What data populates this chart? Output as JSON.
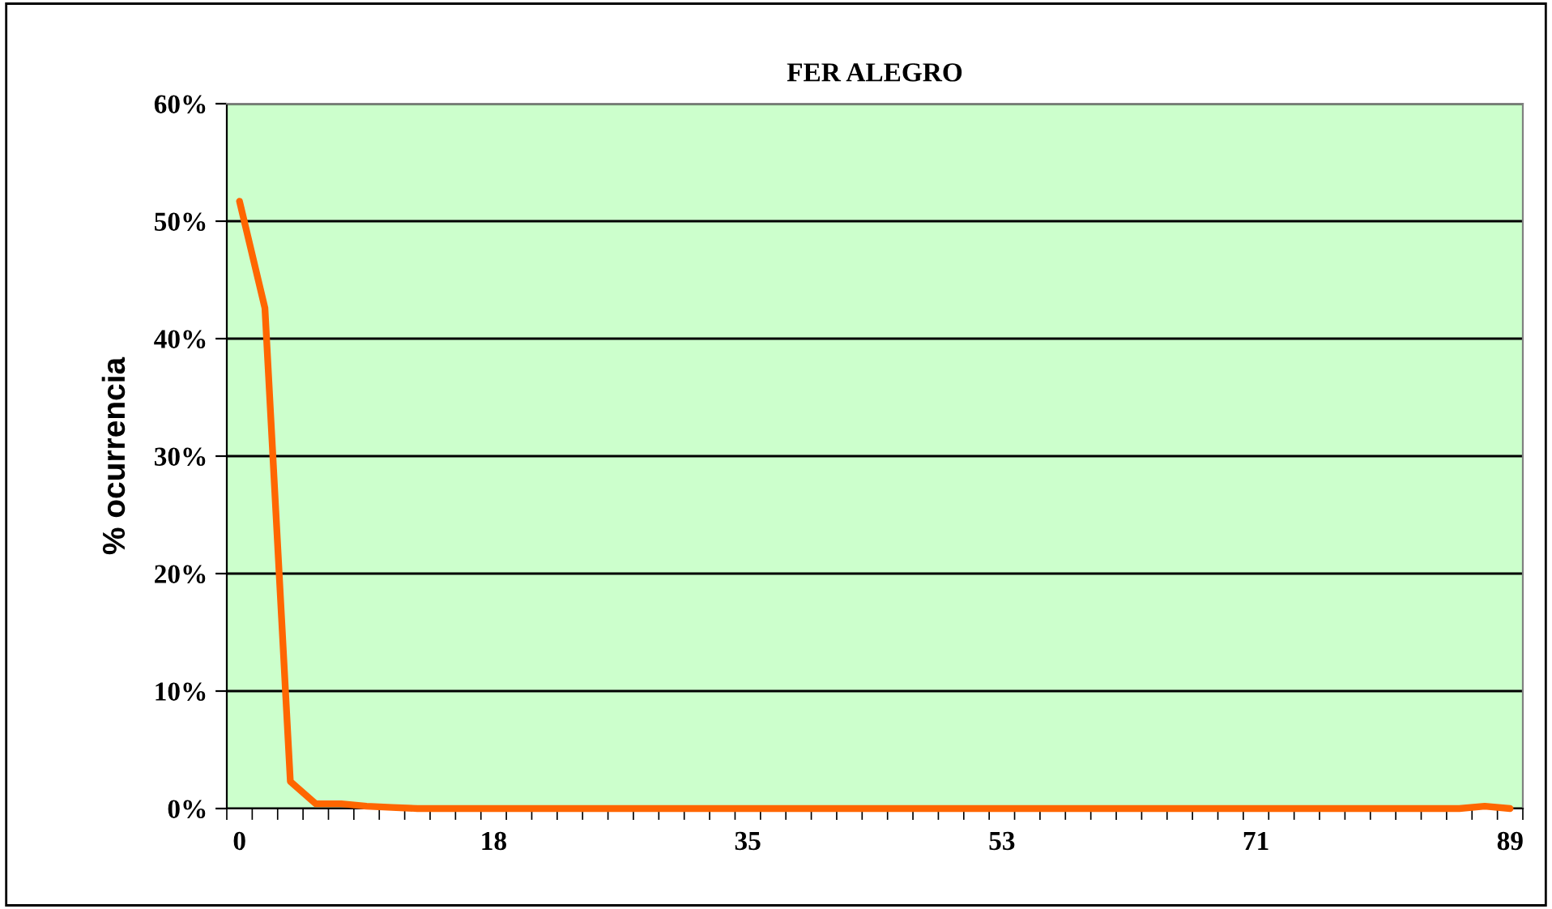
{
  "chart_data": {
    "type": "line",
    "title": "FER ALEGRO",
    "ylabel": "% ocurrencia",
    "categories": [
      "0",
      null,
      null,
      null,
      null,
      null,
      null,
      null,
      null,
      null,
      "18",
      null,
      null,
      null,
      null,
      null,
      null,
      null,
      null,
      null,
      "35",
      null,
      null,
      null,
      null,
      null,
      null,
      null,
      null,
      null,
      "53",
      null,
      null,
      null,
      null,
      null,
      null,
      null,
      null,
      null,
      "71",
      null,
      null,
      null,
      null,
      null,
      null,
      null,
      null,
      null,
      "89"
    ],
    "series": [
      {
        "color": "#ff6600",
        "values": [
          51.7,
          42.6,
          2.3,
          0.4,
          0.4,
          0.2,
          0.1,
          0,
          0,
          0,
          0,
          0,
          0,
          0,
          0,
          0,
          0,
          0,
          0,
          0,
          0,
          0,
          0,
          0,
          0,
          0,
          0,
          0,
          0,
          0,
          0,
          0,
          0,
          0,
          0,
          0,
          0,
          0,
          0,
          0,
          0,
          0,
          0,
          0,
          0,
          0,
          0,
          0,
          0,
          0.2,
          0
        ]
      }
    ],
    "ylim": [
      0,
      60
    ],
    "yticks": [
      {
        "value": 0,
        "label": "0%"
      },
      {
        "value": 10,
        "label": "10%"
      },
      {
        "value": 20,
        "label": "20%"
      },
      {
        "value": 30,
        "label": "30%"
      },
      {
        "value": 40,
        "label": "40%"
      },
      {
        "value": 50,
        "label": "50%"
      },
      {
        "value": 60,
        "label": "60%"
      }
    ],
    "grid": "y",
    "marker": "none",
    "line_style": "solid"
  }
}
